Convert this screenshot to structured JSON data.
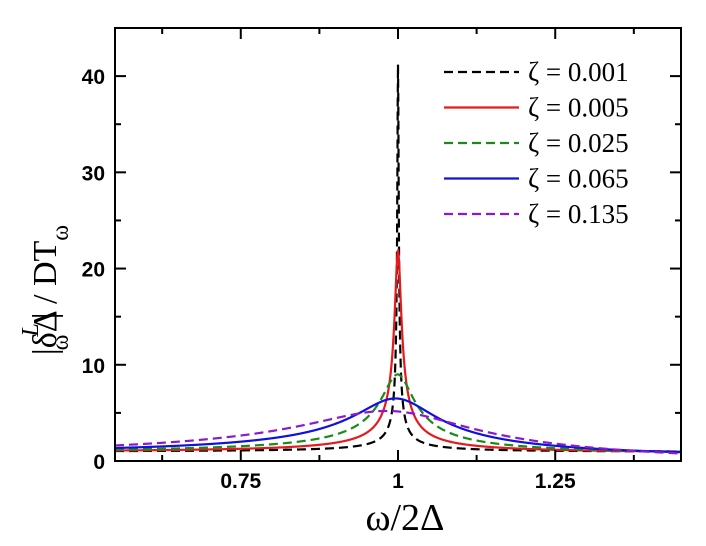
{
  "chart_data": {
    "type": "line",
    "title": "",
    "xlabel": "ω/2Δ",
    "ylabel": "|δΔ_ω^L| / DT_ω",
    "ylabel_parts": {
      "open": "|δΔ",
      "sup": "L",
      "sub": "ω",
      "mid": "| / DT",
      "sub2": "ω"
    },
    "xlim": [
      0.55,
      1.45
    ],
    "ylim": [
      0,
      45
    ],
    "xticks": [
      0.75,
      1,
      1.25
    ],
    "xtick_labels": [
      "0.75",
      "1",
      "1.25"
    ],
    "yticks": [
      0,
      10,
      20,
      30,
      40
    ],
    "ytick_labels": [
      "0",
      "10",
      "20",
      "30",
      "40"
    ],
    "grid": false,
    "legend_position": "top-right",
    "series": [
      {
        "name": "ζ = 0.001",
        "zeta": 0.001,
        "color": "#000000",
        "dash": "dashed",
        "peak_y": 41.2
      },
      {
        "name": "ζ = 0.005",
        "zeta": 0.005,
        "color": "#e41a1c",
        "dash": "solid",
        "peak_y": 21.8
      },
      {
        "name": "ζ = 0.025",
        "zeta": 0.025,
        "color": "#1a8a1a",
        "dash": "dashed",
        "peak_y": 9.0
      },
      {
        "name": "ζ = 0.065",
        "zeta": 0.065,
        "color": "#1010e0",
        "dash": "solid",
        "peak_y": 6.5
      },
      {
        "name": "ζ = 0.135",
        "zeta": 0.135,
        "color": "#8a1ad0",
        "dash": "dashed",
        "peak_y": 5.2
      }
    ]
  }
}
